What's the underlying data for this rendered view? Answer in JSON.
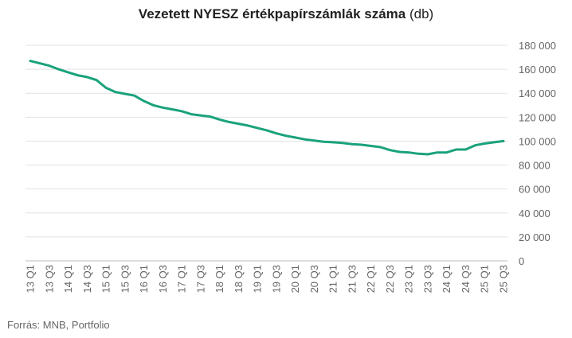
{
  "title_bold": "Vezetett NYESZ értékpapírszámlák száma",
  "title_unit": "(db)",
  "source": "Forrás: MNB, Portfolio",
  "line_color": "#1aa27c",
  "chart_data": {
    "type": "line",
    "title": "Vezetett NYESZ értékpapírszámlák száma (db)",
    "xlabel": "",
    "ylabel": "",
    "ylim": [
      0,
      180000
    ],
    "yticks": [
      "0",
      "20 000",
      "40 000",
      "60 000",
      "80 000",
      "100 000",
      "120 000",
      "140 000",
      "160 000",
      "180 000"
    ],
    "x_labels": [
      "13 Q1",
      "13 Q3",
      "14 Q1",
      "14 Q3",
      "15 Q1",
      "15 Q3",
      "16 Q1",
      "16 Q3",
      "17 Q1",
      "17 Q3",
      "18 Q1",
      "18 Q3",
      "19 Q1",
      "19 Q3",
      "20 Q1",
      "20 Q3",
      "21 Q1",
      "21 Q3",
      "22 Q1",
      "22 Q3",
      "23 Q1",
      "23 Q3",
      "24 Q1",
      "24 Q3",
      "25 Q1",
      "25 Q3"
    ],
    "x": [
      "13 Q1",
      "13 Q2",
      "13 Q3",
      "13 Q4",
      "14 Q1",
      "14 Q2",
      "14 Q3",
      "14 Q4",
      "15 Q1",
      "15 Q2",
      "15 Q3",
      "15 Q4",
      "16 Q1",
      "16 Q2",
      "16 Q3",
      "16 Q4",
      "17 Q1",
      "17 Q2",
      "17 Q3",
      "17 Q4",
      "18 Q1",
      "18 Q2",
      "18 Q3",
      "18 Q4",
      "19 Q1",
      "19 Q2",
      "19 Q3",
      "19 Q4",
      "20 Q1",
      "20 Q2",
      "20 Q3",
      "20 Q4",
      "21 Q1",
      "21 Q2",
      "21 Q3",
      "21 Q4",
      "22 Q1",
      "22 Q2",
      "22 Q3",
      "22 Q4",
      "23 Q1",
      "23 Q2",
      "23 Q3",
      "23 Q4",
      "24 Q1",
      "24 Q2",
      "24 Q3",
      "24 Q4",
      "25 Q1",
      "25 Q2",
      "25 Q3"
    ],
    "series": [
      {
        "values": [
          167000,
          165000,
          163000,
          160000,
          157500,
          155000,
          153500,
          151000,
          144500,
          141000,
          139500,
          138000,
          133500,
          130000,
          128000,
          126500,
          125000,
          122500,
          121500,
          120500,
          118000,
          116000,
          114500,
          113000,
          111000,
          109000,
          106500,
          104500,
          103000,
          101500,
          100500,
          99500,
          99000,
          98500,
          97500,
          97000,
          96000,
          95000,
          92500,
          91000,
          90500,
          89500,
          89000,
          90500,
          90500,
          93000,
          93000,
          96500,
          98000,
          99000,
          100000
        ]
      }
    ],
    "grid": true,
    "legend": "none"
  }
}
